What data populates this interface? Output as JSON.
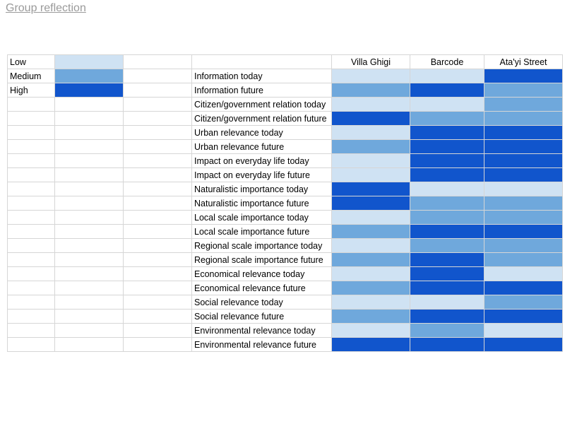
{
  "page": {
    "title": "Group reflection"
  },
  "colors": {
    "Low": "#cfe2f3",
    "Medium": "#6fa8dc",
    "High": "#1155cc"
  },
  "legend": [
    {
      "label": "Low",
      "level": "Low"
    },
    {
      "label": "Medium",
      "level": "Medium"
    },
    {
      "label": "High",
      "level": "High"
    }
  ],
  "columns": [
    "Villa Ghigi",
    "Barcode",
    "Ata'yi Street"
  ],
  "rows": [
    {
      "label": "Information today",
      "values": [
        "Low",
        "Low",
        "High"
      ]
    },
    {
      "label": "Information future",
      "values": [
        "Medium",
        "High",
        "Medium"
      ]
    },
    {
      "label": "Citizen/government relation today",
      "values": [
        "Low",
        "Low",
        "Medium"
      ]
    },
    {
      "label": "Citizen/government relation future",
      "values": [
        "High",
        "Medium",
        "Medium"
      ]
    },
    {
      "label": "Urban relevance today",
      "values": [
        "Low",
        "High",
        "High"
      ]
    },
    {
      "label": "Urban relevance future",
      "values": [
        "Medium",
        "High",
        "High"
      ]
    },
    {
      "label": "Impact on everyday life today",
      "values": [
        "Low",
        "High",
        "High"
      ]
    },
    {
      "label": "Impact on everyday life future",
      "values": [
        "Low",
        "High",
        "High"
      ]
    },
    {
      "label": "Naturalistic importance today",
      "values": [
        "High",
        "Low",
        "Low"
      ]
    },
    {
      "label": "Naturalistic importance future",
      "values": [
        "High",
        "Medium",
        "Medium"
      ]
    },
    {
      "label": "Local scale importance today",
      "values": [
        "Low",
        "Medium",
        "Medium"
      ]
    },
    {
      "label": "Local scale importance future",
      "values": [
        "Medium",
        "High",
        "High"
      ]
    },
    {
      "label": "Regional scale importance today",
      "values": [
        "Low",
        "Medium",
        "Medium"
      ]
    },
    {
      "label": "Regional scale importance future",
      "values": [
        "Medium",
        "High",
        "Medium"
      ]
    },
    {
      "label": "Economical relevance today",
      "values": [
        "Low",
        "High",
        "Low"
      ]
    },
    {
      "label": "Economical relevance future",
      "values": [
        "Medium",
        "High",
        "High"
      ]
    },
    {
      "label": "Social relevance today",
      "values": [
        "Low",
        "Low",
        "Medium"
      ]
    },
    {
      "label": "Social relevance future",
      "values": [
        "Medium",
        "High",
        "High"
      ]
    },
    {
      "label": "Environmental relevance today",
      "values": [
        "Low",
        "Medium",
        "Low"
      ]
    },
    {
      "label": "Environmental relevance future",
      "values": [
        "High",
        "High",
        "High"
      ]
    }
  ]
}
